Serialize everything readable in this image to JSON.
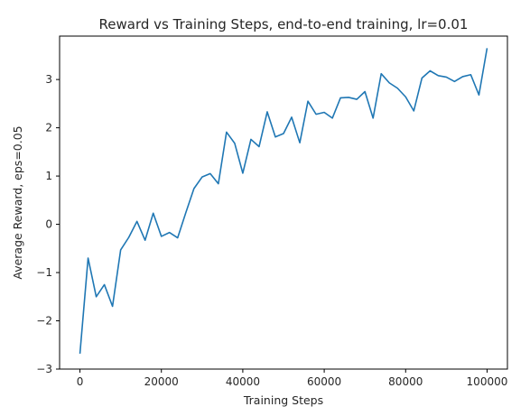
{
  "chart_data": {
    "type": "line",
    "title": "Reward vs Training Steps, end-to-end training, lr=0.01",
    "xlabel": "Training Steps",
    "ylabel": "Average Reward, eps=0.05",
    "xlim": [
      -5000,
      105000
    ],
    "ylim": [
      -3.0,
      3.9
    ],
    "xticks": [
      0,
      20000,
      40000,
      60000,
      80000,
      100000
    ],
    "xtick_labels": [
      "0",
      "20000",
      "40000",
      "60000",
      "80000",
      "100000"
    ],
    "yticks": [
      -3,
      -2,
      -1,
      0,
      1,
      2,
      3
    ],
    "ytick_labels": [
      "−3",
      "−2",
      "−1",
      "0",
      "1",
      "2",
      "3"
    ],
    "grid": false,
    "color": "#1f77b4",
    "series": [
      {
        "x": [
          0,
          2000,
          4000,
          6000,
          8000,
          10000,
          12000,
          14000,
          16000,
          18000,
          20000,
          22000,
          24000,
          26000,
          28000,
          30000,
          32000,
          34000,
          36000,
          38000,
          40000,
          42000,
          44000,
          46000,
          48000,
          50000,
          52000,
          54000,
          56000,
          58000,
          60000,
          62000,
          64000,
          66000,
          68000,
          70000,
          72000,
          74000,
          76000,
          78000,
          80000,
          82000,
          84000,
          86000,
          88000,
          90000,
          92000,
          94000,
          96000,
          98000,
          100000
        ],
        "y": [
          -2.68,
          -0.7,
          -1.5,
          -1.25,
          -1.7,
          -0.53,
          -0.27,
          0.06,
          -0.33,
          0.23,
          -0.25,
          -0.17,
          -0.28,
          0.24,
          0.74,
          0.98,
          1.05,
          0.84,
          1.91,
          1.68,
          1.06,
          1.76,
          1.61,
          2.33,
          1.81,
          1.88,
          2.22,
          1.69,
          2.55,
          2.28,
          2.32,
          2.2,
          2.62,
          2.63,
          2.59,
          2.75,
          2.2,
          3.12,
          2.93,
          2.82,
          2.64,
          2.35,
          3.03,
          3.18,
          3.08,
          3.05,
          2.96,
          3.06,
          3.1,
          2.68,
          3.65
        ]
      }
    ]
  }
}
